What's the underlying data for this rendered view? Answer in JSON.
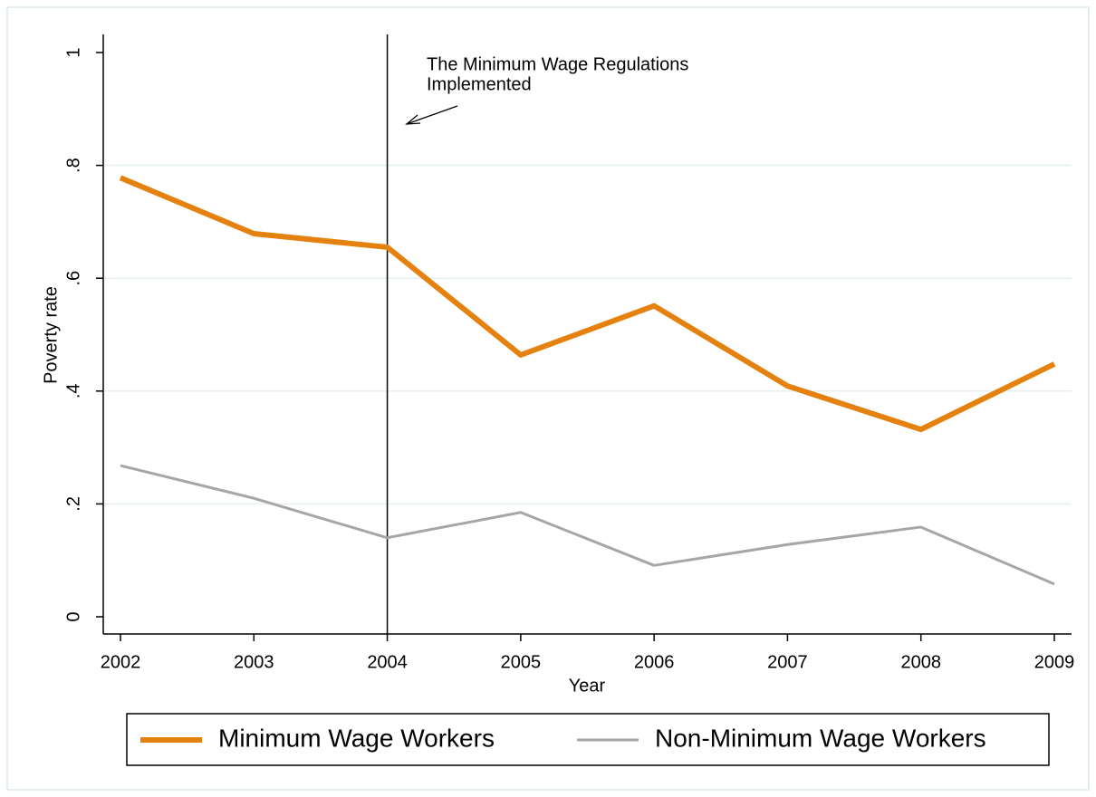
{
  "chart_data": {
    "type": "line",
    "x_label": "Year",
    "y_label": "Poverty rate",
    "x": [
      2002,
      2003,
      2004,
      2005,
      2006,
      2007,
      2008,
      2009
    ],
    "series": [
      {
        "name": "Minimum Wage Workers",
        "color": "#e5820f",
        "values": [
          0.778,
          0.679,
          0.655,
          0.464,
          0.551,
          0.409,
          0.332,
          0.448
        ]
      },
      {
        "name": "Non-Minimum Wage Workers",
        "color": "#a6a6a6",
        "values": [
          0.268,
          0.21,
          0.14,
          0.185,
          0.091,
          0.128,
          0.159,
          0.058
        ]
      }
    ],
    "xlim": [
      2002,
      2009
    ],
    "xticks": [
      2002,
      2003,
      2004,
      2005,
      2006,
      2007,
      2008,
      2009
    ],
    "ylim": [
      0,
      1
    ],
    "yticks": [
      0,
      {
        "value": 0.2,
        "label": ".2"
      },
      {
        "value": 0.4,
        "label": ".4"
      },
      {
        "value": 0.6,
        "label": ".6"
      },
      {
        "value": 0.8,
        "label": ".8"
      },
      1
    ],
    "grid": true,
    "vline": 2004,
    "annotation": [
      "The Minimum Wage Regulations",
      "Implemented"
    ],
    "legend": "bottom"
  }
}
